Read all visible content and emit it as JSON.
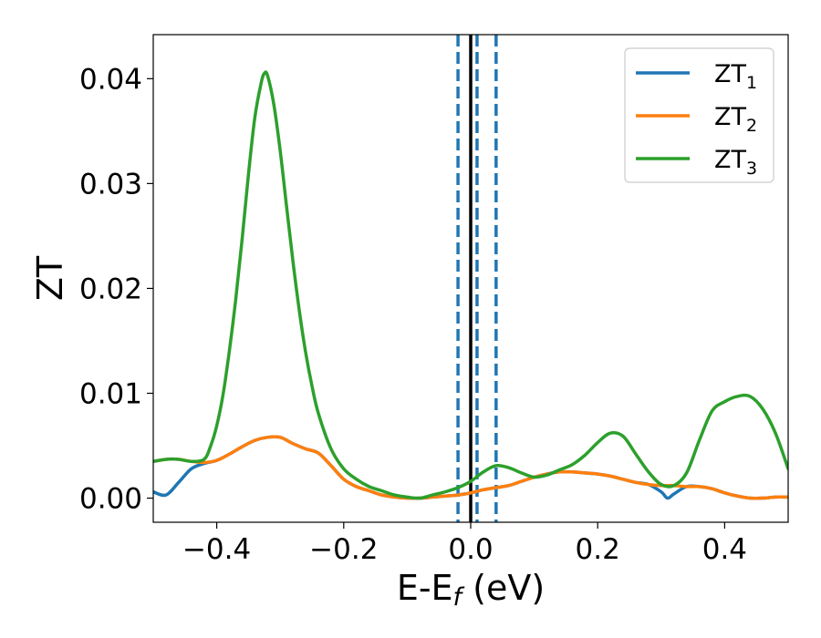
{
  "chart_data": {
    "type": "line",
    "xlabel": "E-E",
    "xlabel_sub": "f",
    "xlabel_unit": " (eV)",
    "ylabel": "ZT",
    "xlim": [
      -0.5,
      0.5
    ],
    "ylim": [
      -0.0023,
      0.0442
    ],
    "xticks": [
      -0.4,
      -0.2,
      0.0,
      0.2,
      0.4
    ],
    "xtick_labels": [
      "−0.4",
      "−0.2",
      "0.0",
      "0.2",
      "0.4"
    ],
    "yticks": [
      0.0,
      0.01,
      0.02,
      0.03,
      0.04
    ],
    "ytick_labels": [
      "0.00",
      "0.01",
      "0.02",
      "0.03",
      "0.04"
    ],
    "grid": false,
    "legend_position": "top-right",
    "vertical_lines": [
      {
        "x": 0.0,
        "style": "solid",
        "color": "#000000"
      },
      {
        "x": -0.02,
        "style": "dashed",
        "color": "#1f77b4"
      },
      {
        "x": 0.01,
        "style": "dashed",
        "color": "#1f77b4"
      },
      {
        "x": 0.04,
        "style": "dashed",
        "color": "#1f77b4"
      }
    ],
    "series": [
      {
        "name": "ZT",
        "sub": "1",
        "color": "#1f77b4",
        "x": [
          -0.5,
          -0.48,
          -0.46,
          -0.44,
          -0.42,
          -0.4,
          -0.38,
          -0.36,
          -0.34,
          -0.32,
          -0.3,
          -0.28,
          -0.26,
          -0.24,
          -0.22,
          -0.2,
          -0.18,
          -0.16,
          -0.14,
          -0.12,
          -0.1,
          -0.08,
          -0.06,
          -0.04,
          -0.02,
          0.0,
          0.02,
          0.04,
          0.06,
          0.08,
          0.1,
          0.12,
          0.14,
          0.16,
          0.18,
          0.2,
          0.22,
          0.24,
          0.26,
          0.28,
          0.3,
          0.31,
          0.32,
          0.34,
          0.36,
          0.38,
          0.4,
          0.42,
          0.44,
          0.46,
          0.48,
          0.5
        ],
        "y": [
          0.0006,
          0.0003,
          0.0015,
          0.0028,
          0.0033,
          0.0036,
          0.0042,
          0.0049,
          0.0055,
          0.0058,
          0.0058,
          0.0052,
          0.0047,
          0.0043,
          0.0031,
          0.0018,
          0.0011,
          0.0007,
          0.0003,
          0.0001,
          0.0,
          0.0,
          0.0001,
          0.0002,
          0.0003,
          0.0005,
          0.0008,
          0.001,
          0.0012,
          0.0016,
          0.002,
          0.0023,
          0.0025,
          0.0025,
          0.0024,
          0.0023,
          0.0021,
          0.0018,
          0.0015,
          0.0013,
          0.0006,
          0.0,
          0.0004,
          0.0011,
          0.0011,
          0.0009,
          0.0005,
          0.0002,
          0.0,
          0.0,
          0.0001,
          0.0001
        ]
      },
      {
        "name": "ZT",
        "sub": "2",
        "color": "#ff7f0e",
        "x": [
          -0.5,
          -0.48,
          -0.46,
          -0.44,
          -0.42,
          -0.4,
          -0.38,
          -0.36,
          -0.34,
          -0.32,
          -0.3,
          -0.28,
          -0.26,
          -0.24,
          -0.22,
          -0.2,
          -0.18,
          -0.16,
          -0.14,
          -0.12,
          -0.1,
          -0.08,
          -0.06,
          -0.04,
          -0.02,
          0.0,
          0.02,
          0.04,
          0.06,
          0.08,
          0.1,
          0.12,
          0.14,
          0.16,
          0.18,
          0.2,
          0.22,
          0.24,
          0.26,
          0.28,
          0.3,
          0.32,
          0.34,
          0.36,
          0.38,
          0.4,
          0.42,
          0.44,
          0.46,
          0.48,
          0.5
        ],
        "y": [
          0.0035,
          0.0037,
          0.0037,
          0.0035,
          0.0034,
          0.0036,
          0.0042,
          0.0049,
          0.0055,
          0.0058,
          0.0058,
          0.0052,
          0.0047,
          0.0043,
          0.0031,
          0.0018,
          0.0011,
          0.0007,
          0.0003,
          0.0001,
          0.0,
          0.0,
          0.0001,
          0.0002,
          0.0003,
          0.0005,
          0.0008,
          0.001,
          0.0012,
          0.0016,
          0.002,
          0.0023,
          0.0025,
          0.0025,
          0.0024,
          0.0023,
          0.0021,
          0.0018,
          0.0015,
          0.0013,
          0.0012,
          0.0012,
          0.0011,
          0.0011,
          0.0009,
          0.0005,
          0.0002,
          0.0,
          0.0,
          0.0001,
          0.0001
        ]
      },
      {
        "name": "ZT",
        "sub": "3",
        "color": "#2ca02c",
        "x": [
          -0.5,
          -0.48,
          -0.46,
          -0.44,
          -0.42,
          -0.41,
          -0.4,
          -0.39,
          -0.38,
          -0.37,
          -0.36,
          -0.35,
          -0.34,
          -0.33,
          -0.325,
          -0.32,
          -0.31,
          -0.3,
          -0.29,
          -0.28,
          -0.27,
          -0.26,
          -0.25,
          -0.24,
          -0.22,
          -0.2,
          -0.18,
          -0.16,
          -0.14,
          -0.12,
          -0.1,
          -0.08,
          -0.06,
          -0.04,
          -0.02,
          0.0,
          0.02,
          0.04,
          0.06,
          0.08,
          0.1,
          0.12,
          0.14,
          0.16,
          0.18,
          0.2,
          0.22,
          0.24,
          0.26,
          0.28,
          0.3,
          0.32,
          0.34,
          0.36,
          0.38,
          0.4,
          0.42,
          0.44,
          0.46,
          0.48,
          0.5
        ],
        "y": [
          0.0035,
          0.0037,
          0.0037,
          0.0035,
          0.0037,
          0.0049,
          0.0069,
          0.0099,
          0.0141,
          0.019,
          0.0247,
          0.0309,
          0.0363,
          0.0396,
          0.0405,
          0.0403,
          0.0375,
          0.0331,
          0.0278,
          0.0226,
          0.0179,
          0.0139,
          0.0107,
          0.0081,
          0.0047,
          0.0028,
          0.0018,
          0.0011,
          0.0007,
          0.0003,
          0.0001,
          0.0,
          0.0003,
          0.0006,
          0.001,
          0.0016,
          0.0025,
          0.0031,
          0.0029,
          0.0024,
          0.002,
          0.0022,
          0.0027,
          0.0032,
          0.0041,
          0.0053,
          0.0062,
          0.0059,
          0.0042,
          0.0025,
          0.0013,
          0.0012,
          0.0024,
          0.0055,
          0.0083,
          0.0092,
          0.0097,
          0.0097,
          0.0085,
          0.0062,
          0.0028
        ]
      }
    ]
  }
}
